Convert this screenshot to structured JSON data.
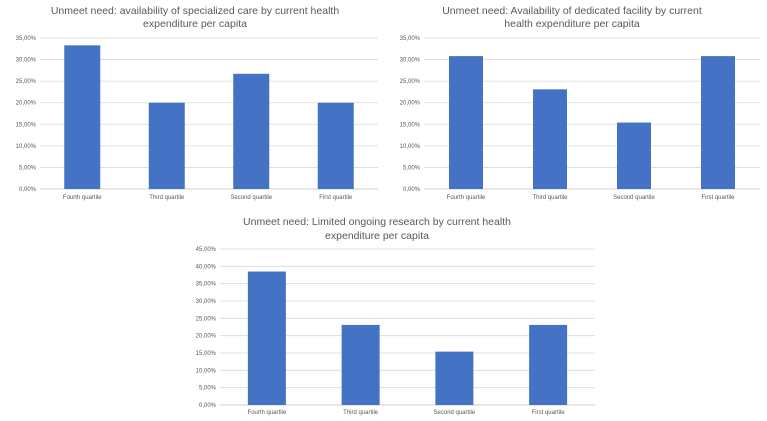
{
  "colors": {
    "bar": "#4472c4",
    "grid": "#d9d9d9",
    "text": "#595959"
  },
  "chart_data": [
    {
      "type": "bar",
      "title_lines": [
        "Unmeet need: availability of specialized care by current health",
        "expenditure per capita"
      ],
      "categories": [
        "Fourth quartile",
        "Third quartile",
        "Second quartile",
        "First quartile"
      ],
      "values": [
        33.3,
        20.0,
        26.7,
        20.0
      ],
      "ylim": [
        0,
        35
      ],
      "yticks": [
        0,
        5,
        10,
        15,
        20,
        25,
        30,
        35
      ],
      "ytick_labels": [
        "0,00%",
        "5,00%",
        "10,00%",
        "15,00%",
        "20,00%",
        "25,00%",
        "30,00%",
        "35,00%"
      ],
      "xlabel": "",
      "ylabel": ""
    },
    {
      "type": "bar",
      "title_lines": [
        "Unmeet need: Availability of dedicated facility  by current",
        "health expenditure per capita"
      ],
      "categories": [
        "Fourth quartile",
        "Third quartile",
        "Second quartile",
        "First quartile"
      ],
      "values": [
        30.8,
        23.1,
        15.4,
        30.8
      ],
      "ylim": [
        0,
        35
      ],
      "yticks": [
        0,
        5,
        10,
        15,
        20,
        25,
        30,
        35
      ],
      "ytick_labels": [
        "0,00%",
        "5,00%",
        "10,00%",
        "15,00%",
        "20,00%",
        "25,00%",
        "30,00%",
        "35,00%"
      ],
      "xlabel": "",
      "ylabel": ""
    },
    {
      "type": "bar",
      "title_lines": [
        "Unmeet need: Limited ongoing research by current health",
        "expenditure per capita"
      ],
      "categories": [
        "Fourth quartile",
        "Third quartile",
        "Second quartile",
        "First quartile"
      ],
      "values": [
        38.5,
        23.1,
        15.4,
        23.1
      ],
      "ylim": [
        0,
        45
      ],
      "yticks": [
        0,
        5,
        10,
        15,
        20,
        25,
        30,
        35,
        40,
        45
      ],
      "ytick_labels": [
        "0,00%",
        "5,00%",
        "10,00%",
        "15,00%",
        "20,00%",
        "25,00%",
        "30,00%",
        "35,00%",
        "40,00%",
        "45,00%"
      ],
      "xlabel": "",
      "ylabel": ""
    }
  ]
}
